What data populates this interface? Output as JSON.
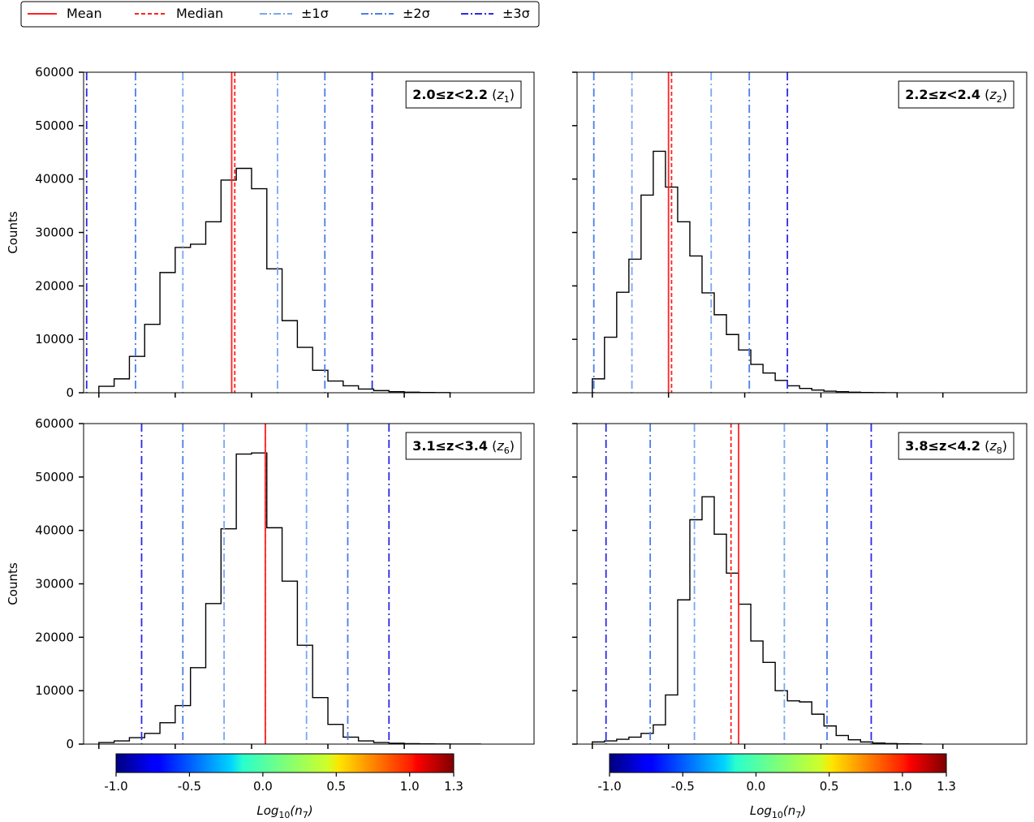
{
  "legend": {
    "entries": [
      {
        "label": "Mean",
        "color": "#ff2222",
        "style": "solid"
      },
      {
        "label": "Median",
        "color": "#ff2222",
        "style": "dashed"
      },
      {
        "label": "±1σ",
        "color": "#7aa6f2",
        "style": "dashdot"
      },
      {
        "label": "±2σ",
        "color": "#4a7ee8",
        "style": "dashdot"
      },
      {
        "label": "±3σ",
        "color": "#2a2ae6",
        "style": "dashdot"
      }
    ]
  },
  "colorbar": {
    "label_base": "Log",
    "label_sub": "10",
    "label_arg": "(n",
    "label_arg_sub": "7",
    "label_close": ")",
    "range": [
      -1.0,
      1.3
    ],
    "ticks": [
      "-1.0",
      "-0.5",
      "0.0",
      "0.5",
      "1.0",
      "1.3"
    ],
    "tick_values": [
      -1.0,
      -0.5,
      0.0,
      0.5,
      1.0,
      1.3
    ],
    "colormap": "jet"
  },
  "chart_data": [
    {
      "type": "bar",
      "panel": "top-left",
      "label_bold": "2.0≤z<2.2",
      "label_italic": "z",
      "label_sub": "1",
      "ylabel": "Counts",
      "ylim": [
        0,
        60000
      ],
      "yticks": [
        "0",
        "10000",
        "20000",
        "30000",
        "40000",
        "50000",
        "60000"
      ],
      "xlim": [
        -1.1,
        1.85
      ],
      "bin_edges": [
        -1.0,
        -0.9,
        -0.8,
        -0.7,
        -0.6,
        -0.5,
        -0.4,
        -0.3,
        -0.2,
        -0.1,
        0.0,
        0.1,
        0.2,
        0.3,
        0.4,
        0.5,
        0.6,
        0.7,
        0.8,
        0.9,
        1.0,
        1.1,
        1.2,
        1.3
      ],
      "counts": [
        1200,
        2600,
        6800,
        12800,
        22500,
        27200,
        27800,
        32000,
        39800,
        42000,
        38200,
        23200,
        13500,
        8500,
        4200,
        2200,
        1300,
        700,
        400,
        200,
        100,
        50,
        20
      ],
      "mean": -0.13,
      "median": -0.11,
      "sigma1": [
        -0.45,
        0.17
      ],
      "sigma2": [
        -0.76,
        0.48
      ],
      "sigma3": [
        -1.08,
        0.79
      ]
    },
    {
      "type": "bar",
      "panel": "top-right",
      "label_bold": "2.2≤z<2.4",
      "label_italic": "z",
      "label_sub": "2",
      "ylabel": "",
      "ylim": [
        0,
        60000
      ],
      "yticks": [],
      "xlim": [
        -1.1,
        1.85
      ],
      "bin_edges": [
        -1.0,
        -0.92,
        -0.84,
        -0.76,
        -0.68,
        -0.6,
        -0.52,
        -0.44,
        -0.36,
        -0.28,
        -0.2,
        -0.12,
        -0.04,
        0.04,
        0.12,
        0.2,
        0.28,
        0.36,
        0.44,
        0.52,
        0.6,
        0.68,
        0.76,
        0.84,
        0.92,
        1.0
      ],
      "counts": [
        2600,
        10400,
        18800,
        25000,
        37000,
        45200,
        38500,
        32000,
        25600,
        18700,
        14600,
        10900,
        8000,
        5300,
        3700,
        2300,
        1300,
        800,
        500,
        300,
        200,
        100,
        50,
        20,
        10
      ],
      "mean": -0.5,
      "median": -0.48,
      "sigma1": [
        -0.74,
        -0.22
      ],
      "sigma2": [
        -0.99,
        0.03
      ],
      "sigma3": [
        -1.24,
        0.28
      ]
    },
    {
      "type": "bar",
      "panel": "bottom-left",
      "label_bold": "3.1≤z<3.4",
      "label_italic": "z",
      "label_sub": "6",
      "ylabel": "Counts",
      "ylim": [
        0,
        60000
      ],
      "yticks": [
        "0",
        "10000",
        "20000",
        "30000",
        "40000",
        "50000",
        "60000"
      ],
      "xlim": [
        -1.1,
        1.85
      ],
      "bin_edges": [
        -1.0,
        -0.9,
        -0.8,
        -0.7,
        -0.6,
        -0.5,
        -0.4,
        -0.3,
        -0.2,
        -0.1,
        0.0,
        0.1,
        0.2,
        0.3,
        0.4,
        0.5,
        0.6,
        0.7,
        0.8,
        0.9,
        1.0,
        1.1,
        1.2,
        1.3,
        1.4,
        1.5
      ],
      "counts": [
        300,
        600,
        1200,
        2000,
        4000,
        7200,
        14300,
        26300,
        40300,
        54300,
        54500,
        40500,
        30500,
        18500,
        8700,
        3700,
        1300,
        600,
        300,
        150,
        80,
        40,
        20,
        10,
        5
      ],
      "mean": 0.09,
      "median": 0.09,
      "sigma1": [
        -0.18,
        0.36
      ],
      "sigma2": [
        -0.45,
        0.63
      ],
      "sigma3": [
        -0.72,
        0.9
      ]
    },
    {
      "type": "bar",
      "panel": "bottom-right",
      "label_bold": "3.8≤z<4.2",
      "label_italic": "z",
      "label_sub": "8",
      "ylabel": "",
      "ylim": [
        0,
        60000
      ],
      "yticks": [],
      "xlim": [
        -1.1,
        1.85
      ],
      "bin_edges": [
        -1.0,
        -0.92,
        -0.84,
        -0.76,
        -0.68,
        -0.6,
        -0.52,
        -0.44,
        -0.36,
        -0.28,
        -0.2,
        -0.12,
        -0.04,
        0.04,
        0.12,
        0.2,
        0.28,
        0.36,
        0.44,
        0.52,
        0.6,
        0.68,
        0.76,
        0.84,
        0.92,
        1.0,
        1.08,
        1.16
      ],
      "counts": [
        400,
        600,
        900,
        1300,
        2000,
        3600,
        9200,
        27000,
        42000,
        46300,
        39300,
        32000,
        26200,
        19300,
        15300,
        10000,
        8100,
        7900,
        5600,
        3400,
        1600,
        800,
        400,
        200,
        100,
        50,
        20
      ],
      "mean": -0.04,
      "median": -0.09,
      "sigma1": [
        -0.33,
        0.26
      ],
      "sigma2": [
        -0.62,
        0.54
      ],
      "sigma3": [
        -0.91,
        0.83
      ]
    }
  ]
}
